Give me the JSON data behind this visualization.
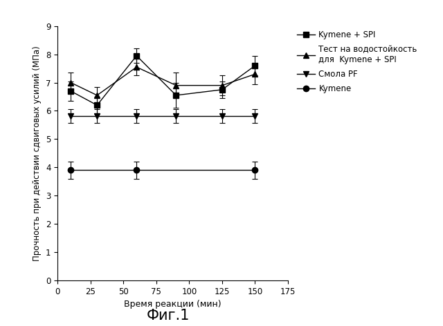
{
  "title": "Фиг.1",
  "xlabel": "Время реакции (мин)",
  "ylabel": "Прочность при действии сдвиговых усилий (МПа)",
  "xlim": [
    0,
    175
  ],
  "ylim": [
    0,
    9
  ],
  "xticks": [
    0,
    25,
    50,
    75,
    100,
    125,
    150,
    175
  ],
  "yticks": [
    0,
    1,
    2,
    3,
    4,
    5,
    6,
    7,
    8,
    9
  ],
  "series": [
    {
      "key": "kymene_spi",
      "label": "Kymene + SPI",
      "x": [
        10,
        30,
        60,
        90,
        125,
        150
      ],
      "y": [
        6.7,
        6.2,
        7.95,
        6.55,
        6.75,
        7.6
      ],
      "yerr": [
        0.35,
        0.3,
        0.25,
        0.45,
        0.3,
        0.35
      ],
      "marker": "s",
      "color": "#000000",
      "linestyle": "-",
      "markersize": 6
    },
    {
      "key": "water_resistance",
      "label": "Тест на водостойкость\nдля  Kymene + SPI",
      "x": [
        10,
        30,
        60,
        90,
        125,
        150
      ],
      "y": [
        7.0,
        6.55,
        7.55,
        6.9,
        6.9,
        7.3
      ],
      "yerr": [
        0.35,
        0.3,
        0.3,
        0.45,
        0.35,
        0.35
      ],
      "marker": "^",
      "color": "#000000",
      "linestyle": "-",
      "markersize": 6
    },
    {
      "key": "smola_pf",
      "label": "Смола PF",
      "x": [
        10,
        30,
        60,
        90,
        125,
        150
      ],
      "y": [
        5.82,
        5.82,
        5.82,
        5.82,
        5.82,
        5.82
      ],
      "yerr": [
        0.25,
        0.25,
        0.25,
        0.25,
        0.25,
        0.25
      ],
      "marker": "v",
      "color": "#000000",
      "linestyle": "-",
      "markersize": 6
    },
    {
      "key": "kymene",
      "label": "Kymene",
      "x": [
        10,
        60,
        150
      ],
      "y": [
        3.9,
        3.9,
        3.9
      ],
      "yerr": [
        0.3,
        0.3,
        0.3
      ],
      "marker": "o",
      "color": "#000000",
      "linestyle": "-",
      "markersize": 6
    }
  ],
  "background_color": "#ffffff",
  "figsize": [
    6.4,
    4.72
  ],
  "dpi": 100
}
